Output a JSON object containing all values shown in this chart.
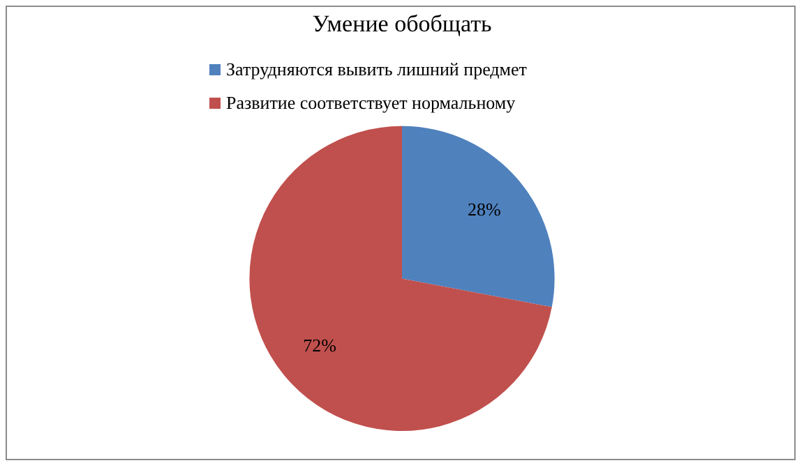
{
  "chart_data": {
    "type": "pie",
    "title": "Умение обобщать",
    "categories": [
      "Затрудняются вывить лишний предмет",
      "Развитие соответствует нормальному"
    ],
    "values": [
      28,
      72
    ],
    "colors": [
      "#4f81bd",
      "#c0504d"
    ],
    "value_labels": [
      "28%",
      "72%"
    ],
    "legend": "top"
  }
}
